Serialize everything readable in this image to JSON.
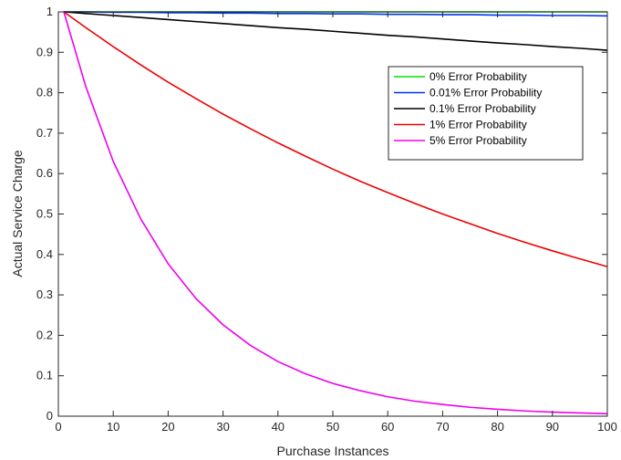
{
  "chart_data": {
    "type": "line",
    "title": "",
    "xlabel": "Purchase Instances",
    "ylabel": "Actual Service Charge",
    "xlim": [
      0,
      100
    ],
    "ylim": [
      0,
      1
    ],
    "xticks": [
      "0",
      "10",
      "20",
      "30",
      "40",
      "50",
      "60",
      "70",
      "80",
      "90",
      "100"
    ],
    "yticks": [
      "0",
      "0.1",
      "0.2",
      "0.3",
      "0.4",
      "0.5",
      "0.6",
      "0.7",
      "0.8",
      "0.9",
      "1"
    ],
    "grid": false,
    "legend_position": "top-right",
    "x": [
      1,
      5,
      10,
      15,
      20,
      25,
      30,
      35,
      40,
      45,
      50,
      55,
      60,
      65,
      70,
      75,
      80,
      85,
      90,
      95,
      100
    ],
    "series": [
      {
        "name": "0% Error Probability",
        "color": "#00e000",
        "values": [
          1,
          1,
          1,
          1,
          1,
          1,
          1,
          1,
          1,
          1,
          1,
          1,
          1,
          1,
          1,
          1,
          1,
          1,
          1,
          1,
          1
        ]
      },
      {
        "name": "0.01% Error Probability",
        "color": "#0033ee",
        "values": [
          1,
          1,
          0.999,
          0.999,
          0.998,
          0.998,
          0.997,
          0.997,
          0.996,
          0.996,
          0.995,
          0.995,
          0.994,
          0.994,
          0.993,
          0.993,
          0.992,
          0.992,
          0.991,
          0.991,
          0.99
        ]
      },
      {
        "name": "0.1% Error Probability",
        "color": "#000000",
        "values": [
          1,
          0.996,
          0.991,
          0.986,
          0.981,
          0.976,
          0.971,
          0.966,
          0.961,
          0.957,
          0.952,
          0.947,
          0.942,
          0.938,
          0.933,
          0.928,
          0.923,
          0.919,
          0.914,
          0.91,
          0.905
        ]
      },
      {
        "name": "1% Error Probability",
        "color": "#ee0000",
        "values": [
          1,
          0.961,
          0.914,
          0.869,
          0.826,
          0.786,
          0.747,
          0.711,
          0.676,
          0.643,
          0.611,
          0.581,
          0.553,
          0.526,
          0.5,
          0.476,
          0.452,
          0.43,
          0.409,
          0.389,
          0.37
        ]
      },
      {
        "name": "5% Error Probability",
        "color": "#ee00ee",
        "values": [
          1,
          0.815,
          0.63,
          0.488,
          0.377,
          0.292,
          0.226,
          0.175,
          0.135,
          0.105,
          0.081,
          0.063,
          0.048,
          0.037,
          0.029,
          0.022,
          0.017,
          0.013,
          0.01,
          0.008,
          0.006
        ]
      }
    ]
  }
}
